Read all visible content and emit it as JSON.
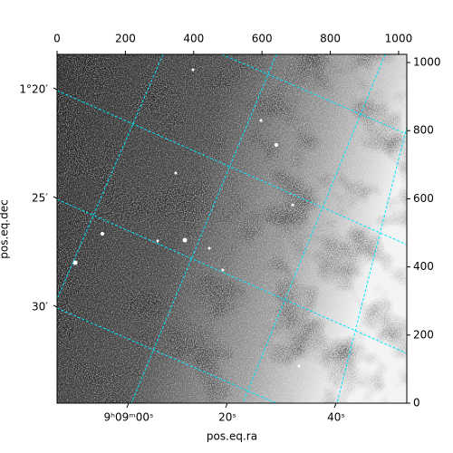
{
  "chart_data": {
    "type": "image",
    "x_label": "pos.eq.ra",
    "y_label": "pos.eq.dec",
    "xlim": [
      0,
      1024
    ],
    "xticks": [
      0,
      200,
      400,
      600,
      800,
      1000
    ],
    "ylim": [
      0,
      1024
    ],
    "yticks": [
      0,
      200,
      400,
      600,
      800,
      1000
    ],
    "ra_ticks": [
      "9ʰ09ᵐ00ˢ",
      "20ˢ",
      "40ˢ"
    ],
    "dec_ticks": [
      "1°20′",
      "25′",
      "30′"
    ]
  }
}
